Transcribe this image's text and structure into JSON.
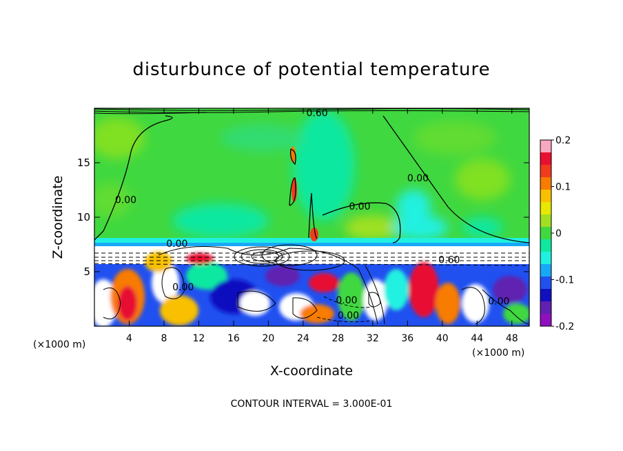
{
  "chart_data": {
    "type": "heatmap",
    "title": "disturbunce of potential temperature",
    "xlabel": "X-coordinate",
    "ylabel": "Z-coordinate",
    "x_unit": "(×1000 m)",
    "z_unit": "(×1000 m)",
    "x_ticks": [
      4,
      8,
      12,
      16,
      20,
      24,
      28,
      32,
      36,
      40,
      44,
      48
    ],
    "z_ticks": [
      5,
      10,
      15
    ],
    "xlim": [
      0,
      50
    ],
    "zlim": [
      0,
      20
    ],
    "colorbar": {
      "ticks": [
        0.2,
        0.1,
        0,
        -0.1,
        -0.2
      ],
      "range": [
        -0.2,
        0.2
      ],
      "colors": [
        "#f8a8c0",
        "#e81030",
        "#f03c1c",
        "#f87c00",
        "#f8c000",
        "#e8e800",
        "#a0e020",
        "#40d840",
        "#10e8a0",
        "#20f0e0",
        "#18a8f8",
        "#2050f0",
        "#1010c0",
        "#6020b0",
        "#9010c0"
      ]
    },
    "contour_labels": [
      {
        "text": "0.60",
        "x": 25.6,
        "z": 19.6
      },
      {
        "text": "0.00",
        "x": 37.2,
        "z": 13.6
      },
      {
        "text": "0.00",
        "x": 30.5,
        "z": 11.0
      },
      {
        "text": "0.00",
        "x": 3.6,
        "z": 11.6
      },
      {
        "text": "0.00",
        "x": 9.5,
        "z": 7.6
      },
      {
        "text": "0.60",
        "x": 40.8,
        "z": 6.1
      },
      {
        "text": "0.00",
        "x": 29.0,
        "z": 2.4
      },
      {
        "text": "0.00",
        "x": 29.2,
        "z": 1.0
      },
      {
        "text": "0.00",
        "x": 46.5,
        "z": 2.3
      },
      {
        "text": "0.00",
        "x": 10.2,
        "z": 3.6
      }
    ],
    "footer": "CONTOUR INTERVAL = 3.000E-01"
  }
}
